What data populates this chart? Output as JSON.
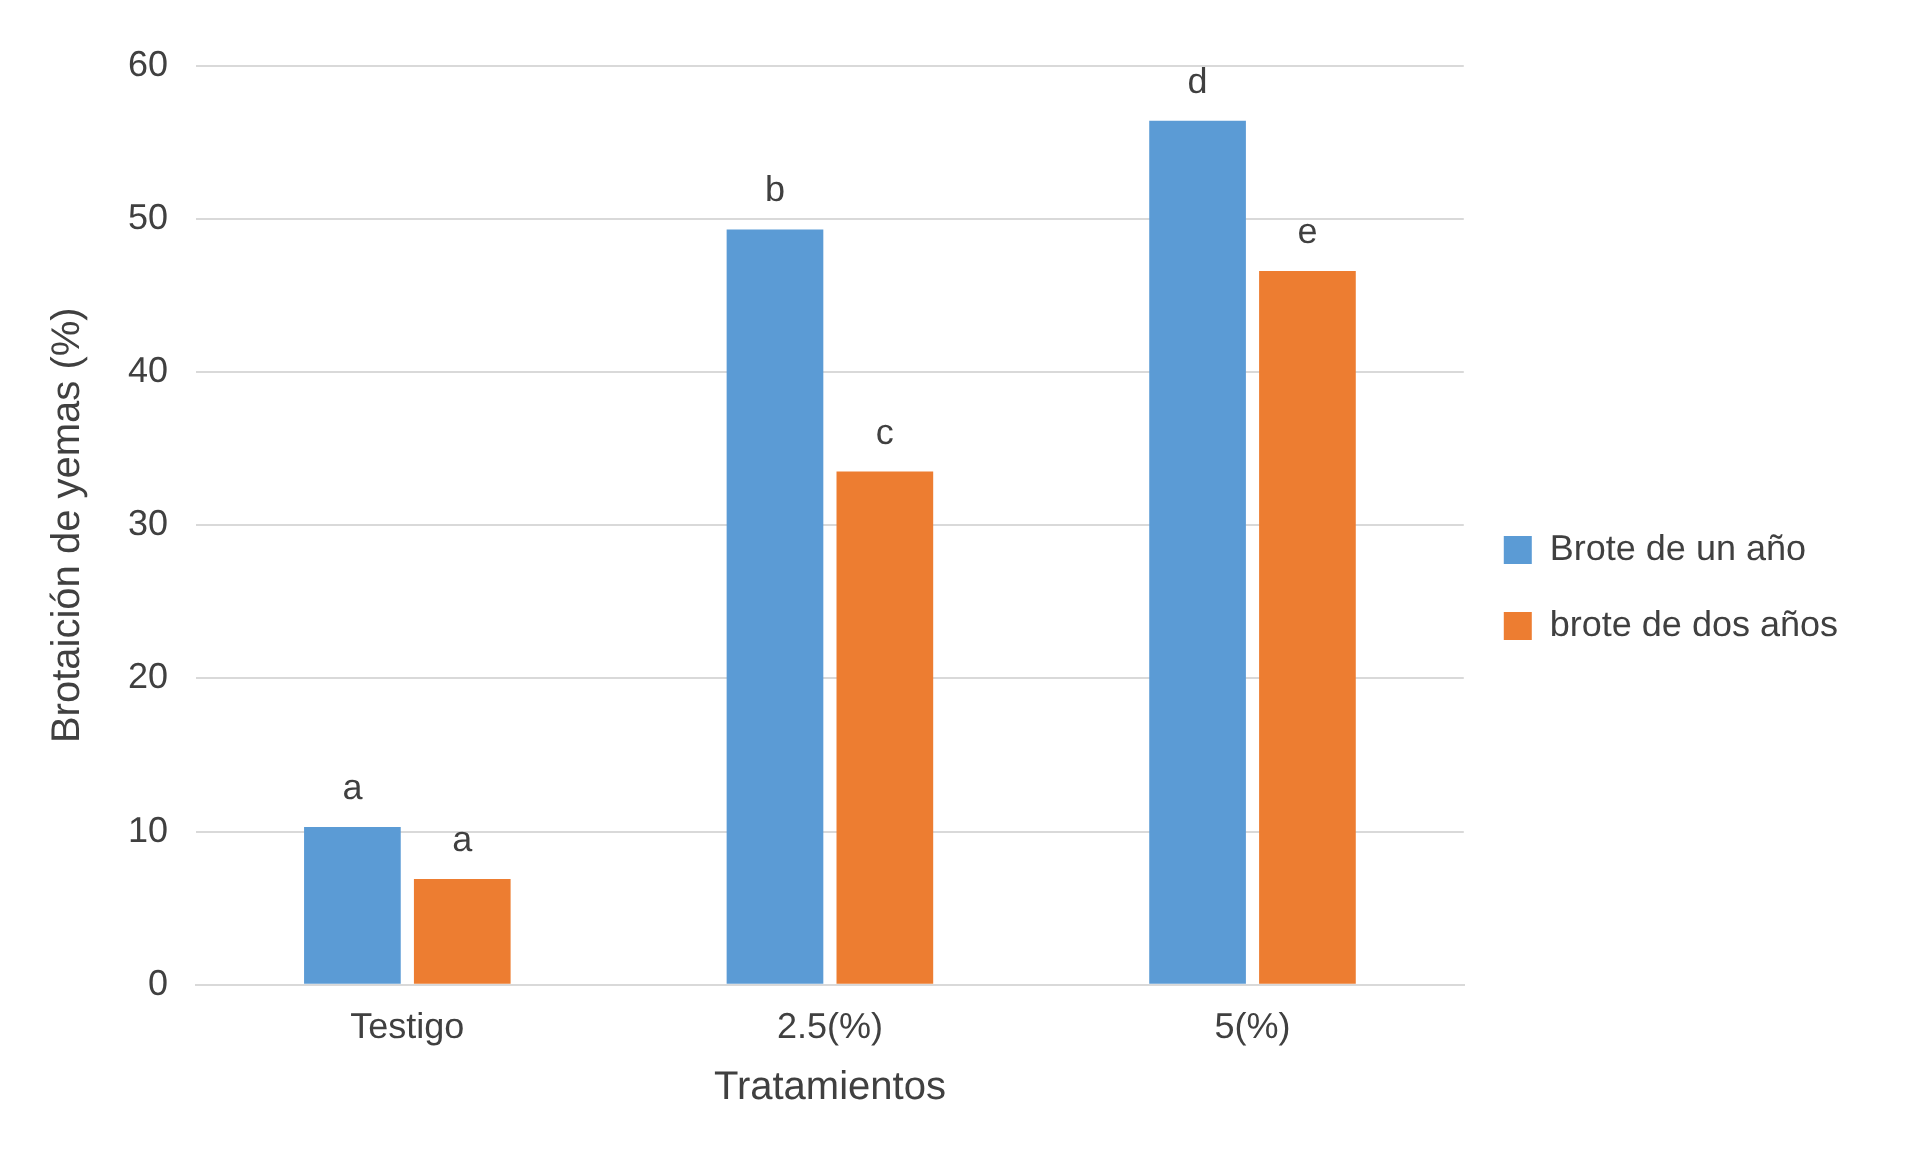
{
  "chart_data": {
    "type": "bar",
    "xlabel": "Tratamientos",
    "ylabel": "Brotaición de yemas (%)",
    "categories": [
      "Testigo",
      "2.5(%)",
      "5(%)"
    ],
    "series": [
      {
        "name": "Brote de un año",
        "color": "#5b9bd5",
        "values": [
          10.3,
          49.3,
          56.4
        ]
      },
      {
        "name": "brote de dos años",
        "color": "#ed7d31",
        "values": [
          6.9,
          33.5,
          46.6
        ]
      }
    ],
    "ylim": [
      0,
      60
    ],
    "yticks": [
      0,
      10,
      20,
      30,
      40,
      50,
      60
    ],
    "grid": "y",
    "legend": "right",
    "annotations": [
      {
        "text": "a",
        "x": "Testigo",
        "y": 10.3
      },
      {
        "text": "a",
        "x": "Testigo",
        "y": 6.9
      },
      {
        "text": "b",
        "x": "2.5(%)",
        "y": 49.3
      },
      {
        "text": "c",
        "x": "2.5(%)",
        "y": 33.5
      },
      {
        "text": "d",
        "x": "5(%)",
        "y": 56.4
      },
      {
        "text": "e",
        "x": "5(%)",
        "y": 46.6
      }
    ]
  }
}
